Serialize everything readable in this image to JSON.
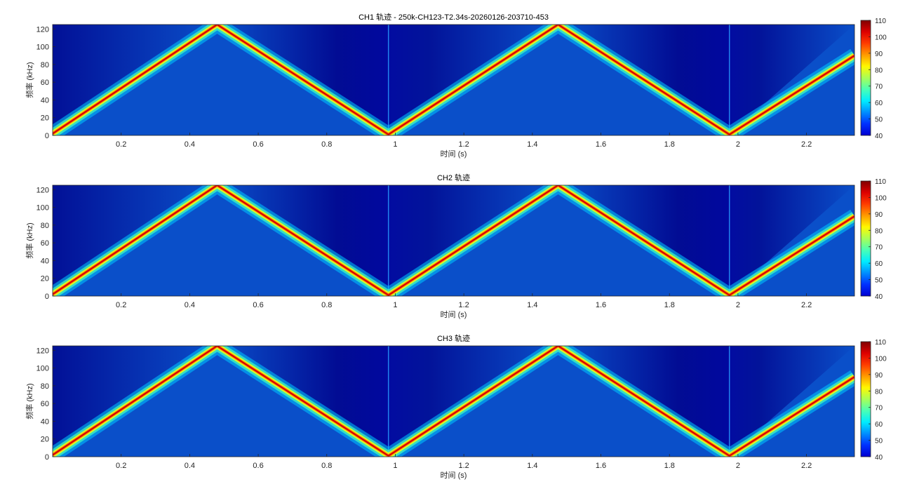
{
  "chart_data": [
    {
      "type": "heatmap",
      "title": "CH1 轨迹 - 250k-CH123-T2.34s-20260126-203710-453",
      "xlabel": "时间 (s)",
      "ylabel": "频率 (kHz)",
      "xlim": [
        0,
        2.34
      ],
      "ylim": [
        0,
        125
      ],
      "xticks": [
        "0.2",
        "0.4",
        "0.6",
        "0.8",
        "1",
        "1.2",
        "1.4",
        "1.6",
        "1.8",
        "2",
        "2.2"
      ],
      "yticks": [
        "0",
        "20",
        "40",
        "60",
        "80",
        "100",
        "120"
      ],
      "colorbar": {
        "range": [
          40,
          110
        ],
        "ticks": [
          "40",
          "50",
          "60",
          "70",
          "80",
          "90",
          "100",
          "110"
        ],
        "colormap": "jet"
      },
      "sweep": {
        "t": [
          0,
          0.48,
          0.98,
          1.475,
          1.975,
          2.34
        ],
        "f_khz": [
          2,
          125,
          1,
          125,
          1,
          90
        ]
      },
      "grid": false
    },
    {
      "type": "heatmap",
      "title": "CH2 轨迹",
      "xlabel": "时间 (s)",
      "ylabel": "频率 (kHz)",
      "xlim": [
        0,
        2.34
      ],
      "ylim": [
        0,
        125
      ],
      "xticks": [
        "0.2",
        "0.4",
        "0.6",
        "0.8",
        "1",
        "1.2",
        "1.4",
        "1.6",
        "1.8",
        "2",
        "2.2"
      ],
      "yticks": [
        "0",
        "20",
        "40",
        "60",
        "80",
        "100",
        "120"
      ],
      "colorbar": {
        "range": [
          40,
          110
        ],
        "ticks": [
          "40",
          "50",
          "60",
          "70",
          "80",
          "90",
          "100",
          "110"
        ],
        "colormap": "jet"
      },
      "sweep": {
        "t": [
          0,
          0.48,
          0.98,
          1.475,
          1.975,
          2.34
        ],
        "f_khz": [
          2,
          125,
          1,
          125,
          1,
          90
        ]
      },
      "grid": false
    },
    {
      "type": "heatmap",
      "title": "CH3 轨迹",
      "xlabel": "时间 (s)",
      "ylabel": "频率 (kHz)",
      "xlim": [
        0,
        2.34
      ],
      "ylim": [
        0,
        125
      ],
      "xticks": [
        "0.2",
        "0.4",
        "0.6",
        "0.8",
        "1",
        "1.2",
        "1.4",
        "1.6",
        "1.8",
        "2",
        "2.2"
      ],
      "yticks": [
        "0",
        "20",
        "40",
        "60",
        "80",
        "100",
        "120"
      ],
      "colorbar": {
        "range": [
          40,
          110
        ],
        "ticks": [
          "40",
          "50",
          "60",
          "70",
          "80",
          "90",
          "100",
          "110"
        ],
        "colormap": "jet"
      },
      "sweep": {
        "t": [
          0,
          0.48,
          0.98,
          1.475,
          1.975,
          2.34
        ],
        "f_khz": [
          2,
          125,
          1,
          125,
          1,
          90
        ]
      },
      "grid": false
    }
  ]
}
